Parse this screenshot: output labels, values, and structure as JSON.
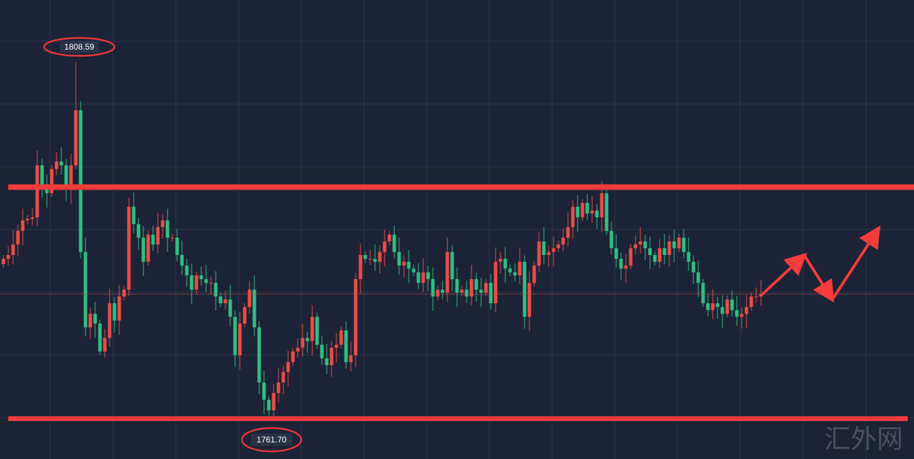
{
  "chart_data": {
    "type": "candlestick",
    "title": "",
    "xlabel": "",
    "ylabel": "",
    "ylim": [
      1758.0,
      1816.8
    ],
    "grid": true,
    "colors": {
      "background": "#1c2336",
      "up": "#ea4d47",
      "down": "#2fbf83",
      "grid": "#2e3649",
      "annotation": "#f03a3a"
    },
    "open_first": 1781.8,
    "closes": [
      1782.5,
      1783.0,
      1784.4,
      1786.2,
      1787.6,
      1787.8,
      1788.0,
      1794.9,
      1792.1,
      1791.2,
      1794.4,
      1795.4,
      1794.9,
      1791.7,
      1794.9,
      1802.2,
      1783.4,
      1773.4,
      1775.2,
      1773.9,
      1770.2,
      1772.0,
      1776.6,
      1774.3,
      1777.5,
      1778.4,
      1789.4,
      1787.1,
      1785.3,
      1782.1,
      1785.7,
      1784.4,
      1786.7,
      1787.6,
      1785.3,
      1785.3,
      1783.0,
      1781.6,
      1780.3,
      1778.4,
      1780.3,
      1779.8,
      1779.3,
      1779.3,
      1777.5,
      1776.6,
      1777.1,
      1774.8,
      1769.7,
      1773.9,
      1776.1,
      1778.4,
      1773.4,
      1766.1,
      1763.8,
      1762.4,
      1764.7,
      1766.1,
      1767.5,
      1768.8,
      1770.2,
      1770.7,
      1772.0,
      1771.6,
      1774.8,
      1771.1,
      1769.3,
      1768.4,
      1770.7,
      1771.1,
      1773.0,
      1768.8,
      1769.7,
      1779.8,
      1783.0,
      1782.5,
      1782.5,
      1782.1,
      1783.4,
      1784.8,
      1785.7,
      1783.4,
      1781.6,
      1782.1,
      1781.2,
      1780.7,
      1779.3,
      1780.7,
      1779.8,
      1777.5,
      1778.4,
      1778.0,
      1783.4,
      1779.8,
      1778.0,
      1778.4,
      1777.5,
      1779.8,
      1778.4,
      1778.0,
      1779.3,
      1776.6,
      1782.1,
      1782.5,
      1781.2,
      1780.7,
      1780.3,
      1782.1,
      1774.8,
      1779.3,
      1781.6,
      1784.8,
      1783.0,
      1783.4,
      1783.9,
      1784.4,
      1785.3,
      1786.7,
      1789.4,
      1788.0,
      1789.9,
      1788.5,
      1788.9,
      1788.0,
      1791.2,
      1786.2,
      1783.9,
      1782.5,
      1781.2,
      1781.6,
      1783.9,
      1784.4,
      1784.8,
      1783.9,
      1783.0,
      1782.1,
      1783.9,
      1783.0,
      1784.8,
      1783.9,
      1785.3,
      1783.4,
      1782.1,
      1780.7,
      1779.3,
      1776.6,
      1775.7,
      1776.6,
      1776.1,
      1775.2,
      1777.1,
      1775.7,
      1774.8,
      1775.2,
      1776.1,
      1777.5,
      1777.5,
      1777.8
    ],
    "swing_high": {
      "index": 15,
      "value": 1808.59,
      "label": "1808.59"
    },
    "swing_low": {
      "index": 55,
      "value": 1761.7,
      "label": "1761.70"
    },
    "resistance_level": 1792.0,
    "support_level": 1761.3,
    "current_price_line": 1777.8,
    "projection_path": [
      1777.8,
      1782.8,
      1777.3,
      1786.3
    ]
  },
  "watermark": "汇外网"
}
